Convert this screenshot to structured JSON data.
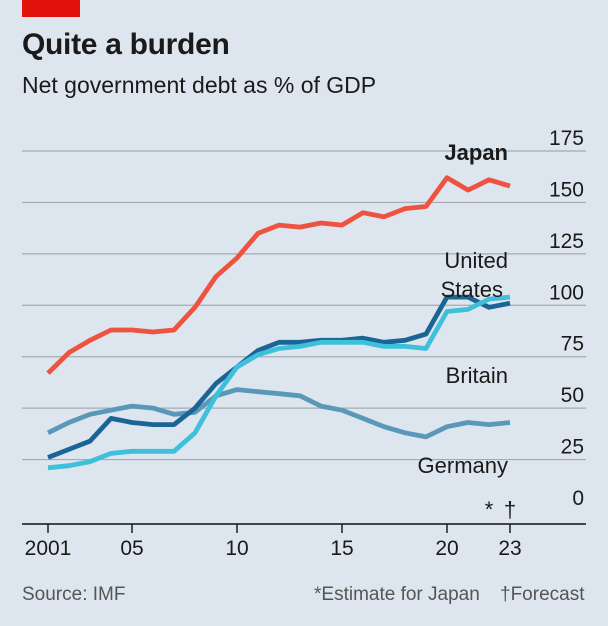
{
  "header": {
    "title": "Quite a burden",
    "subtitle": "Net government debt as % of GDP"
  },
  "footer": {
    "source": "Source: IMF",
    "note_estimate": "*Estimate for Japan",
    "note_forecast": "†Forecast"
  },
  "colors": {
    "background": "#dde6ee",
    "gridline": "#a3aab2",
    "japan": "#ee533f",
    "united_states": "#1b6596",
    "britain": "#3fc0da",
    "germany": "#5a98b9",
    "brand_red": "#e3120b"
  },
  "chart_data": {
    "type": "line",
    "x": [
      2001,
      2002,
      2003,
      2004,
      2005,
      2006,
      2007,
      2008,
      2009,
      2010,
      2011,
      2012,
      2013,
      2014,
      2015,
      2016,
      2017,
      2018,
      2019,
      2020,
      2021,
      2022,
      2023
    ],
    "x_tick_labels": [
      {
        "x": 2001,
        "label": "2001"
      },
      {
        "x": 2005,
        "label": "05"
      },
      {
        "x": 2010,
        "label": "10"
      },
      {
        "x": 2015,
        "label": "15"
      },
      {
        "x": 2020,
        "label": "20"
      },
      {
        "x": 2023,
        "label": "23"
      }
    ],
    "y_ticks": [
      "175",
      "150",
      "125",
      "100",
      "75",
      "50",
      "25",
      "0"
    ],
    "y_tick_values": [
      175,
      150,
      125,
      100,
      75,
      50,
      25,
      0
    ],
    "ylim": [
      0,
      175
    ],
    "xlim": [
      2001,
      2023
    ],
    "grid": true,
    "y_axis_side": "right",
    "markers": [
      {
        "x": 2022,
        "text": "*"
      },
      {
        "x": 2023,
        "text": "†"
      }
    ],
    "series": [
      {
        "name": "Japan",
        "color": "#ee533f",
        "values": [
          67,
          77,
          83,
          88,
          88,
          87,
          88,
          99,
          114,
          123,
          135,
          139,
          138,
          140,
          139,
          145,
          143,
          147,
          148,
          162,
          156,
          161,
          158
        ]
      },
      {
        "name": "United States",
        "color": "#1b6596",
        "values": [
          26,
          30,
          34,
          45,
          43,
          42,
          42,
          50,
          62,
          70,
          78,
          82,
          82,
          83,
          83,
          84,
          82,
          83,
          86,
          104,
          104,
          99,
          101
        ]
      },
      {
        "name": "Britain",
        "color": "#3fc0da",
        "values": [
          21,
          22,
          24,
          28,
          29,
          29,
          29,
          38,
          56,
          70,
          76,
          79,
          80,
          82,
          82,
          82,
          80,
          80,
          79,
          97,
          98,
          103,
          104
        ]
      },
      {
        "name": "Germany",
        "color": "#5a98b9",
        "values": [
          38,
          43,
          47,
          49,
          51,
          50,
          47,
          48,
          56,
          59,
          58,
          57,
          56,
          51,
          49,
          45,
          41,
          38,
          36,
          41,
          43,
          42,
          43
        ]
      }
    ],
    "labels": {
      "japan": "Japan",
      "us_line1": "United",
      "us_line2": "States",
      "britain": "Britain",
      "germany": "Germany"
    }
  }
}
